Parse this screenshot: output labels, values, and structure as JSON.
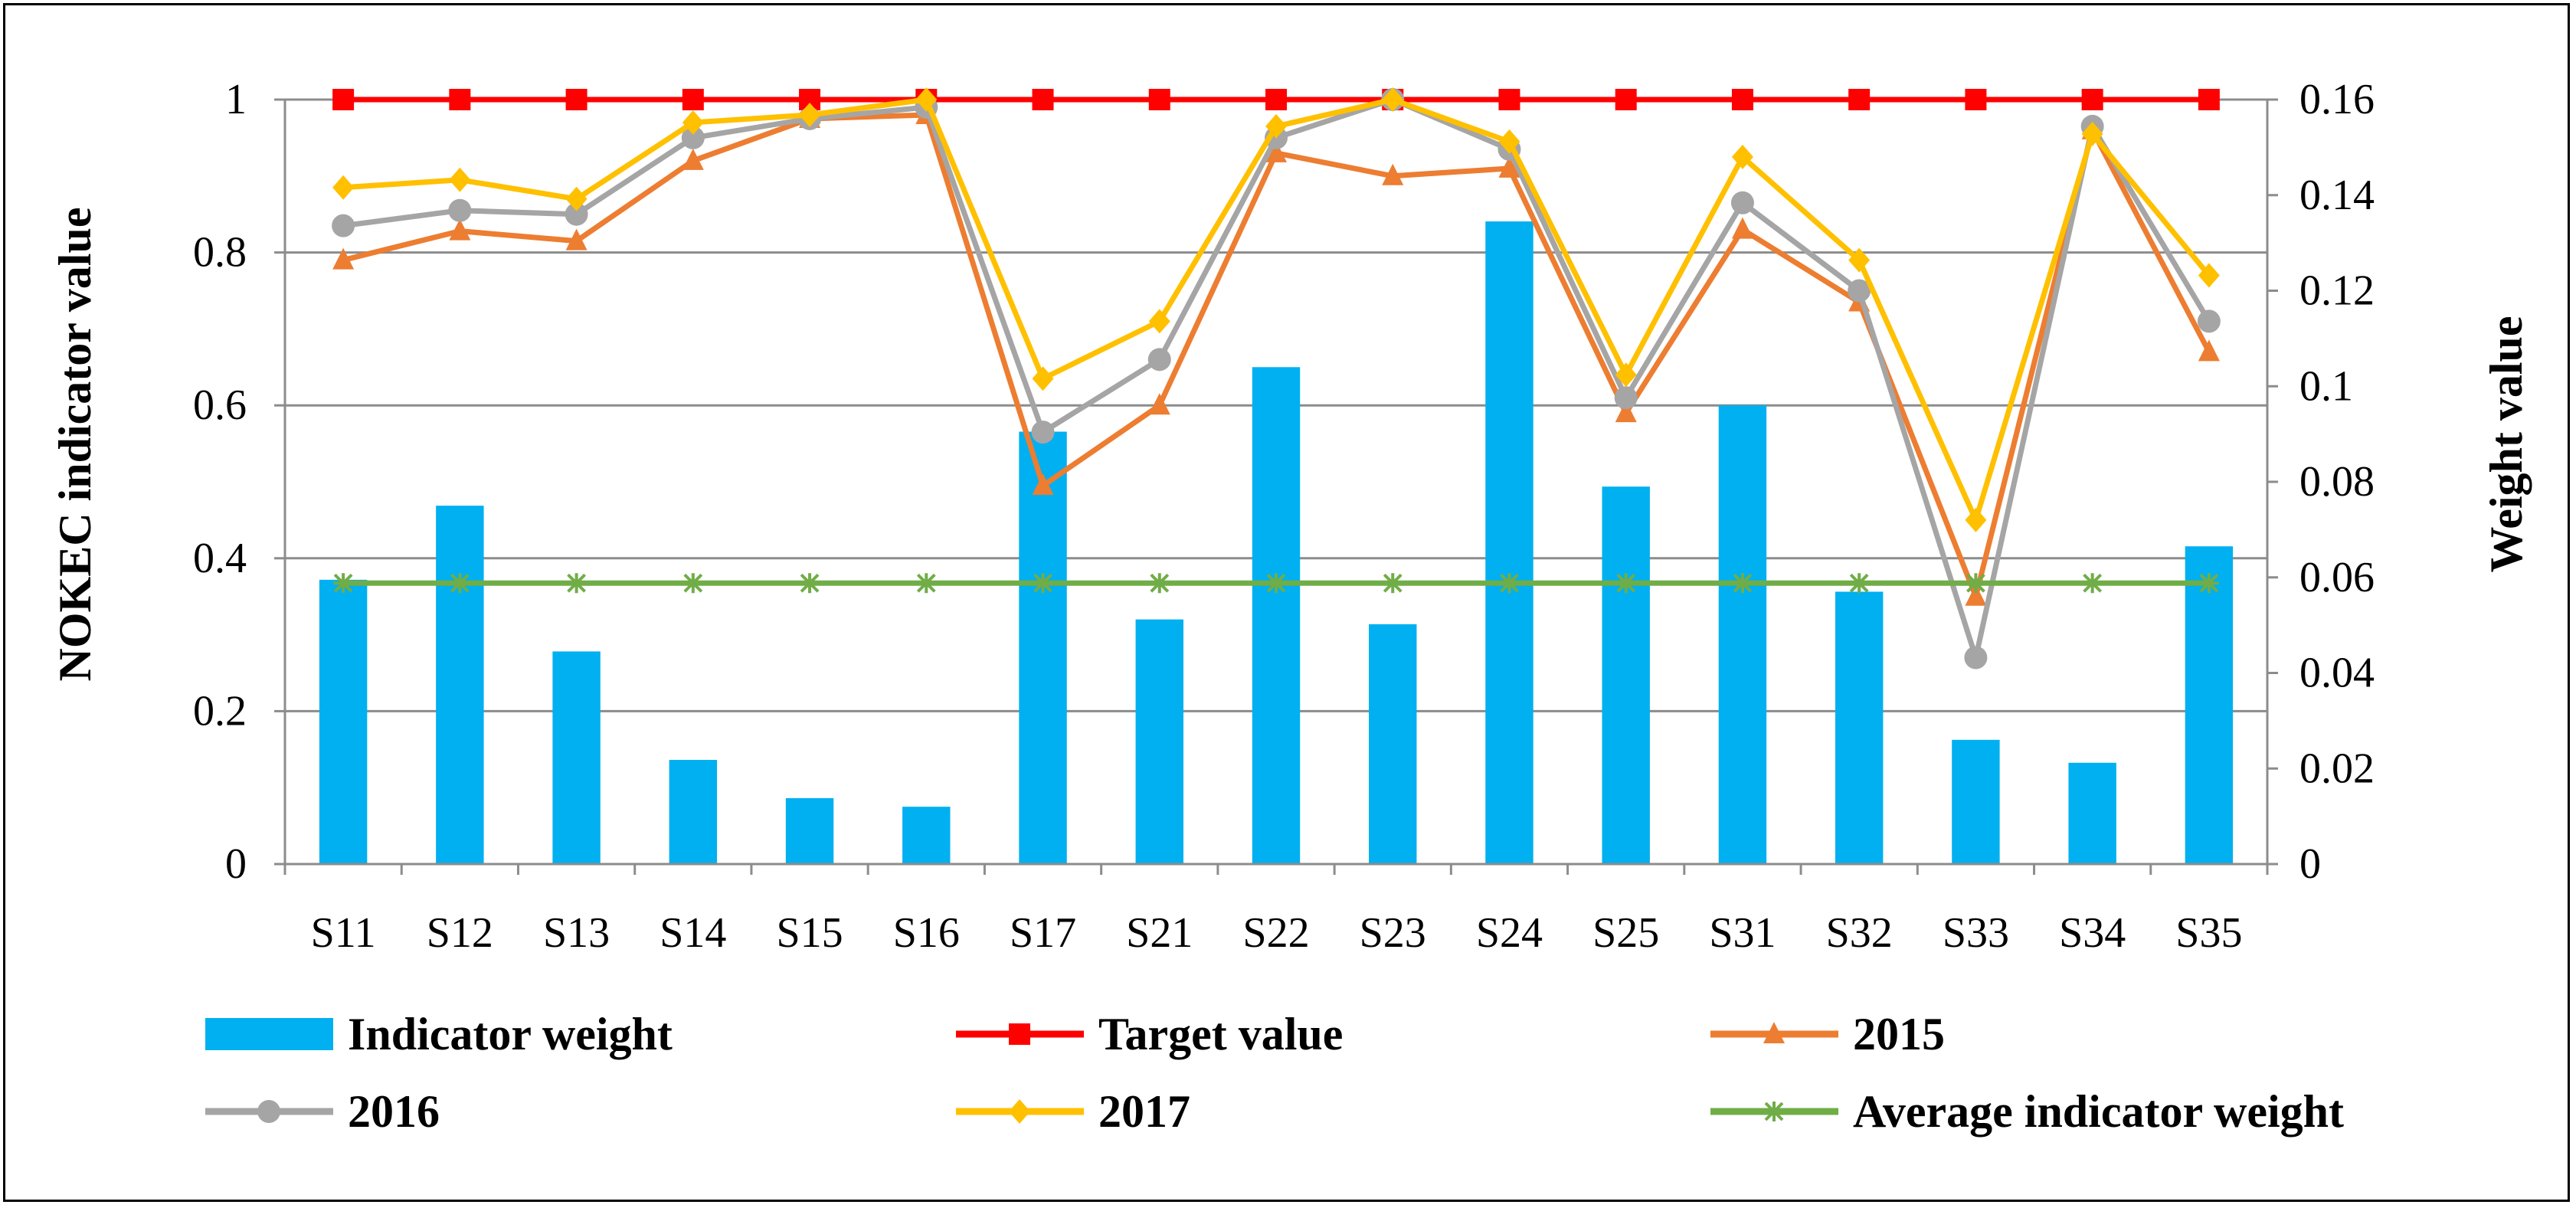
{
  "chart_data": {
    "type": "bar+line",
    "categories": [
      "S11",
      "S12",
      "S13",
      "S14",
      "S15",
      "S16",
      "S17",
      "S21",
      "S22",
      "S23",
      "S24",
      "S25",
      "S31",
      "S32",
      "S33",
      "S34",
      "S35"
    ],
    "y_left": {
      "label": "NOKEC indicator value",
      "ylim": [
        0,
        1
      ],
      "ticks": [
        0,
        0.2,
        0.4,
        0.6,
        0.8,
        1
      ],
      "tick_labels": [
        "0",
        "0.2",
        "0.4",
        "0.6",
        "0.8",
        "1"
      ]
    },
    "y_right": {
      "label": "Weight value",
      "ylim": [
        0,
        0.16
      ],
      "ticks": [
        0,
        0.02,
        0.04,
        0.06,
        0.08,
        0.1,
        0.12,
        0.14,
        0.16
      ],
      "tick_labels": [
        "0",
        "0.02",
        "0.04",
        "0.06",
        "0.08",
        "0.1",
        "0.12",
        "0.14",
        "0.16"
      ]
    },
    "grid": true,
    "legend_position": "bottom",
    "series": [
      {
        "name": "Indicator weight",
        "kind": "bar",
        "axis": "right",
        "color": "#00B0F0",
        "values": [
          0.0595,
          0.075,
          0.0445,
          0.0218,
          0.0138,
          0.012,
          0.0905,
          0.0512,
          0.104,
          0.0502,
          0.1345,
          0.079,
          0.096,
          0.057,
          0.026,
          0.0212,
          0.0665
        ]
      },
      {
        "name": "Target value",
        "kind": "line",
        "axis": "left",
        "color": "#FF0000",
        "marker": "square",
        "values": [
          1,
          1,
          1,
          1,
          1,
          1,
          1,
          1,
          1,
          1,
          1,
          1,
          1,
          1,
          1,
          1,
          1
        ]
      },
      {
        "name": "2015",
        "kind": "line",
        "axis": "left",
        "color": "#ED7D31",
        "marker": "triangle",
        "values": [
          0.79,
          0.828,
          0.815,
          0.92,
          0.975,
          0.98,
          0.495,
          0.6,
          0.93,
          0.9,
          0.91,
          0.59,
          0.83,
          0.735,
          0.35,
          0.96,
          0.67
        ]
      },
      {
        "name": "2016",
        "kind": "line",
        "axis": "left",
        "color": "#A5A5A5",
        "marker": "circle",
        "values": [
          0.835,
          0.855,
          0.85,
          0.95,
          0.975,
          0.99,
          0.565,
          0.66,
          0.95,
          1.0,
          0.935,
          0.61,
          0.865,
          0.75,
          0.27,
          0.965,
          0.71
        ]
      },
      {
        "name": "2017",
        "kind": "line",
        "axis": "left",
        "color": "#FFC000",
        "marker": "diamond",
        "values": [
          0.885,
          0.895,
          0.87,
          0.97,
          0.98,
          1.0,
          0.635,
          0.71,
          0.965,
          1.0,
          0.945,
          0.64,
          0.925,
          0.79,
          0.45,
          0.955,
          0.77
        ]
      },
      {
        "name": "Average indicator weight",
        "kind": "line",
        "axis": "right",
        "color": "#70AD47",
        "marker": "star",
        "values": [
          0.0588,
          0.0588,
          0.0588,
          0.0588,
          0.0588,
          0.0588,
          0.0588,
          0.0588,
          0.0588,
          0.0588,
          0.0588,
          0.0588,
          0.0588,
          0.0588,
          0.0588,
          0.0588,
          0.0588
        ]
      }
    ]
  }
}
